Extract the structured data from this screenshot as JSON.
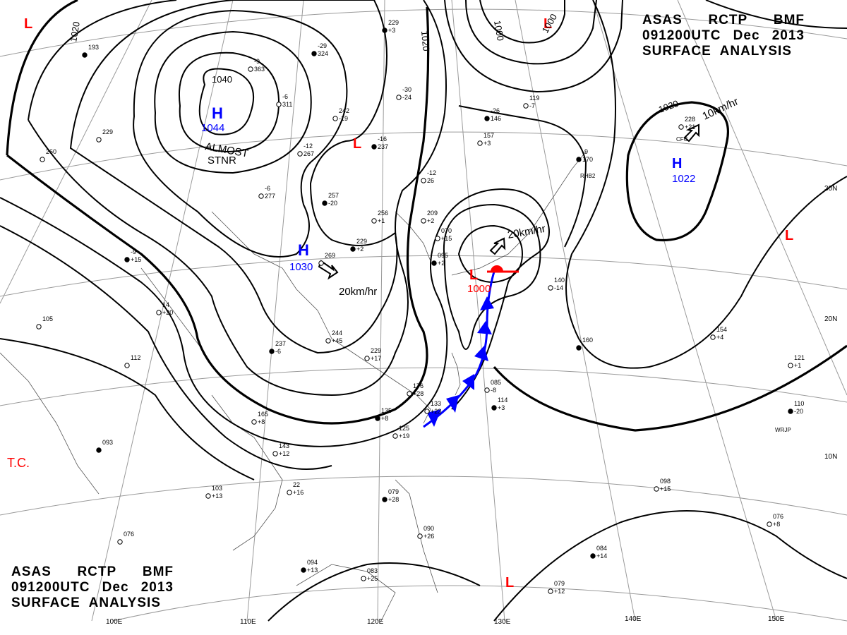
{
  "header": {
    "line1": [
      "ASAS",
      "RCTP",
      "BMF"
    ],
    "line2": [
      "091200UTC",
      "Dec",
      "2013"
    ],
    "line3": "SURFACE  ANALYSIS"
  },
  "pressure_centers": [
    {
      "type": "H",
      "value": "1044",
      "color": "#0000ff"
    },
    {
      "type": "H",
      "value": "1030",
      "color": "#0000ff"
    },
    {
      "type": "H",
      "value": "1022",
      "color": "#0000ff"
    },
    {
      "type": "L",
      "value": "1000",
      "color": "#ff0000"
    },
    {
      "type": "L",
      "value": "",
      "color": "#ff0000"
    }
  ],
  "isobar_labels": [
    "1020",
    "1040",
    "1020",
    "1000",
    "1000",
    "1020"
  ],
  "motion_labels": [
    "ALMOST",
    "STNR",
    "20km/hr",
    "20km/hr",
    "10km/hr"
  ],
  "other_labels": {
    "tc": "T.C."
  },
  "longitude_labels": [
    "110E",
    "120E",
    "130E",
    "140E",
    "150E",
    "100E"
  ],
  "latitude_labels": [
    "30N",
    "20N",
    "10N"
  ],
  "station_plots": [
    {
      "a": "-29",
      "b": "324"
    },
    {
      "a": "-9",
      "b": "363"
    },
    {
      "a": "-6",
      "b": "311"
    },
    {
      "a": "229",
      "b": "+3"
    },
    {
      "a": "-12",
      "b": "267"
    },
    {
      "a": "-6",
      "b": "277"
    },
    {
      "a": "-16",
      "b": "237"
    },
    {
      "a": "242",
      "b": "-19"
    },
    {
      "a": "-30",
      "b": "-24"
    },
    {
      "a": "257",
      "b": "-20"
    },
    {
      "a": "256",
      "b": "+1"
    },
    {
      "a": "209",
      "b": "+2"
    },
    {
      "a": "229",
      "b": "+2"
    },
    {
      "a": "269",
      "b": ""
    },
    {
      "a": "-12",
      "b": "26"
    },
    {
      "a": "-26",
      "b": "146"
    },
    {
      "a": "157",
      "b": "+3"
    },
    {
      "a": "119",
      "b": "-7"
    },
    {
      "a": "-9",
      "b": "170"
    },
    {
      "a": "228",
      "b": "+21"
    },
    {
      "a": "070",
      "b": "+15"
    },
    {
      "a": "095",
      "b": "+2"
    },
    {
      "a": "140",
      "b": "-14"
    },
    {
      "a": "244",
      "b": "+45"
    },
    {
      "a": "237",
      "b": "-6"
    },
    {
      "a": "229",
      "b": "+17"
    },
    {
      "a": "176",
      "b": "+28"
    },
    {
      "a": "135",
      "b": "+8"
    },
    {
      "a": "143",
      "b": "+12"
    },
    {
      "a": "165",
      "b": "+8"
    },
    {
      "a": "-9",
      "b": "+15"
    },
    {
      "a": "105",
      "b": ""
    },
    {
      "a": "112",
      "b": ""
    },
    {
      "a": "093",
      "b": ""
    },
    {
      "a": "103",
      "b": "+13"
    },
    {
      "a": "076",
      "b": ""
    },
    {
      "a": "094",
      "b": "+13"
    },
    {
      "a": "083",
      "b": "+25"
    },
    {
      "a": "090",
      "b": "+26"
    },
    {
      "a": "079",
      "b": "+28"
    },
    {
      "a": "125",
      "b": "+19"
    },
    {
      "a": "133",
      "b": "+23"
    },
    {
      "a": "114",
      "b": "+3"
    },
    {
      "a": "085",
      "b": "-8"
    },
    {
      "a": "098",
      "b": "+15"
    },
    {
      "a": "084",
      "b": "+14"
    },
    {
      "a": "079",
      "b": "+12"
    },
    {
      "a": "076",
      "b": "+8"
    },
    {
      "a": "110",
      "b": "-20"
    },
    {
      "a": "121",
      "b": "+1"
    },
    {
      "a": "154",
      "b": "+4"
    },
    {
      "a": "160",
      "b": ""
    },
    {
      "a": "22",
      "b": "+16"
    },
    {
      "a": "14",
      "b": "+20"
    },
    {
      "a": "193",
      "b": ""
    },
    {
      "a": "260",
      "b": ""
    },
    {
      "a": "229",
      "b": ""
    }
  ],
  "station_ids": [
    "RHB2",
    "WRJP",
    "CFG"
  ],
  "colors": {
    "isobar": "#000000",
    "high": "#0000ff",
    "low": "#ff0000",
    "cold_front": "#0000ff",
    "warm_front": "#ff0000",
    "graticule": "#888888"
  }
}
